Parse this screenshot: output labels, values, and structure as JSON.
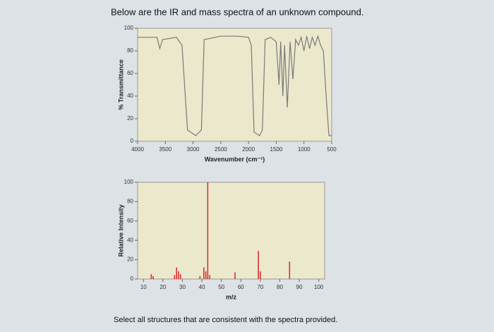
{
  "header": {
    "title": "Below are the IR and mass spectra of an unknown compound."
  },
  "footer": {
    "prompt": "Select all structures that are consistent with the spectra provided."
  },
  "chart_data": [
    {
      "type": "line",
      "x_label": "Wavenumber (cm⁻¹)",
      "y_label": "% Transmittance",
      "xlim": [
        4000,
        500
      ],
      "xticks": [
        4000,
        3500,
        3000,
        2500,
        2000,
        1500,
        1000,
        500
      ],
      "ylim": [
        0,
        100
      ],
      "yticks": [
        0,
        20,
        40,
        60,
        80,
        100
      ],
      "series": [
        {
          "color": "#7a7a7a",
          "x": [
            4000,
            3800,
            3650,
            3600,
            3550,
            3300,
            3200,
            3100,
            2950,
            2850,
            2800,
            2500,
            2200,
            2000,
            1950,
            1900,
            1800,
            1750,
            1700,
            1600,
            1500,
            1450,
            1420,
            1380,
            1350,
            1300,
            1250,
            1200,
            1150,
            1100,
            1050,
            1000,
            950,
            900,
            850,
            800,
            750,
            700,
            650,
            600,
            550,
            500
          ],
          "values": [
            92,
            92,
            92,
            82,
            90,
            92,
            85,
            10,
            5,
            10,
            90,
            93,
            93,
            92,
            85,
            8,
            5,
            10,
            90,
            92,
            88,
            50,
            88,
            40,
            85,
            30,
            88,
            55,
            90,
            85,
            92,
            80,
            93,
            82,
            92,
            85,
            93,
            85,
            80,
            40,
            5,
            5
          ]
        }
      ]
    },
    {
      "type": "bar",
      "x_label": "m/z",
      "y_label": "Relative Intensity",
      "xlim": [
        7,
        103
      ],
      "xticks": [
        10,
        20,
        30,
        40,
        50,
        60,
        70,
        80,
        90,
        100
      ],
      "ylim": [
        0,
        100
      ],
      "yticks": [
        0,
        20,
        40,
        60,
        80,
        100
      ],
      "color": "#d93030",
      "x": [
        14,
        15,
        26,
        27,
        28,
        29,
        39,
        41,
        42,
        43,
        44,
        57,
        69,
        70,
        85
      ],
      "values": [
        5,
        3,
        4,
        12,
        8,
        5,
        3,
        12,
        8,
        100,
        4,
        7,
        29,
        8,
        18
      ]
    }
  ]
}
